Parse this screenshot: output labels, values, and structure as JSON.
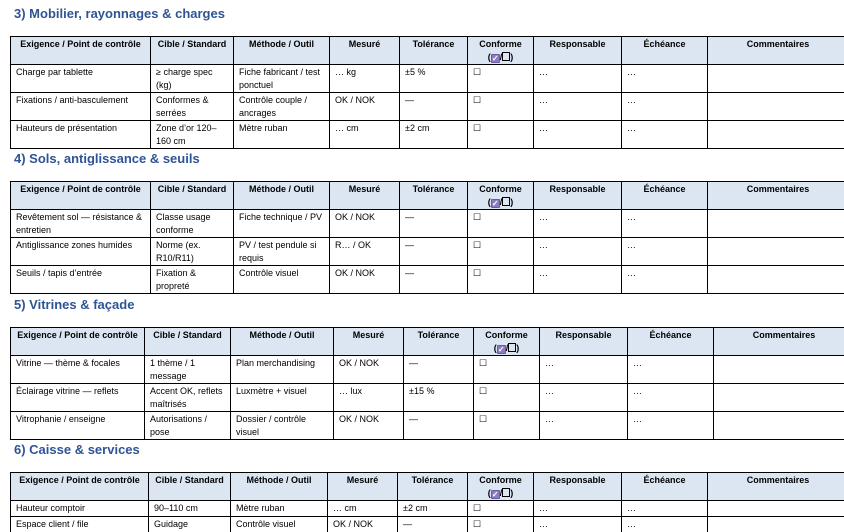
{
  "header_fragment": "",
  "conforme_header": {
    "label": "Conforme",
    "open": "(",
    "sep": "/",
    "close": ")"
  },
  "sections": [
    {
      "title": "3) Mobilier, rayonnages & charges",
      "columns": [
        "Exigence / Point de contrôle",
        "Cible / Standard",
        "Méthode / Outil",
        "Mesuré",
        "Tolérance",
        "Conforme",
        "Responsable",
        "Échéance",
        "Commentaires"
      ],
      "rows": [
        [
          "Charge par tablette",
          "≥ charge spec (kg)",
          "Fiche fabricant / test ponctuel",
          "… kg",
          "±5 %",
          "☐",
          "…",
          "…",
          ""
        ],
        [
          "Fixations / anti-basculement",
          "Conformes & serrées",
          "Contrôle couple / ancrages",
          "OK / NOK",
          "—",
          "☐",
          "…",
          "…",
          ""
        ],
        [
          "Hauteurs de présentation",
          "Zone d’or 120–160 cm",
          "Mètre ruban",
          "… cm",
          "±2 cm",
          "☐",
          "…",
          "…",
          ""
        ]
      ]
    },
    {
      "title": "4) Sols, antiglissance & seuils",
      "columns": [
        "Exigence / Point de contrôle",
        "Cible / Standard",
        "Méthode / Outil",
        "Mesuré",
        "Tolérance",
        "Conforme",
        "Responsable",
        "Échéance",
        "Commentaires"
      ],
      "rows": [
        [
          "Revêtement sol — résistance & entretien",
          "Classe usage conforme",
          "Fiche technique / PV",
          "OK / NOK",
          "—",
          "☐",
          "…",
          "…",
          ""
        ],
        [
          "Antiglissance zones humides",
          "Norme (ex. R10/R11)",
          "PV / test pendule si requis",
          "R… / OK",
          "—",
          "☐",
          "…",
          "…",
          ""
        ],
        [
          "Seuils / tapis d’entrée",
          "Fixation & propreté",
          "Contrôle visuel",
          "OK / NOK",
          "—",
          "☐",
          "…",
          "…",
          ""
        ]
      ]
    },
    {
      "title": "5) Vitrines & façade",
      "columns": [
        "Exigence / Point de contrôle",
        "Cible / Standard",
        "Méthode / Outil",
        "Mesuré",
        "Tolérance",
        "Conforme",
        "Responsable",
        "Échéance",
        "Commentaires"
      ],
      "rows": [
        [
          "Vitrine — thème & focales",
          "1 thème / 1 message",
          "Plan merchandising",
          "OK / NOK",
          "—",
          "☐",
          "…",
          "…",
          ""
        ],
        [
          "Éclairage vitrine — reflets",
          "Accent OK, reflets maîtrisés",
          "Luxmètre + visuel",
          "… lux",
          "±15 %",
          "☐",
          "…",
          "…",
          ""
        ],
        [
          "Vitrophanie / enseigne",
          "Autorisations / pose",
          "Dossier / contrôle visuel",
          "OK / NOK",
          "—",
          "☐",
          "…",
          "…",
          ""
        ]
      ]
    },
    {
      "title": "6) Caisse & services",
      "columns": [
        "Exigence / Point de contrôle",
        "Cible / Standard",
        "Méthode / Outil",
        "Mesuré",
        "Tolérance",
        "Conforme",
        "Responsable",
        "Échéance",
        "Commentaires"
      ],
      "rows": [
        [
          "Hauteur comptoir",
          "90–110 cm",
          "Mètre ruban",
          "… cm",
          "±2 cm",
          "☐",
          "…",
          "…",
          ""
        ],
        [
          "Espace client / file",
          "Guidage",
          "Contrôle visuel",
          "OK / NOK",
          "—",
          "☐",
          "…",
          "…",
          ""
        ]
      ]
    }
  ]
}
